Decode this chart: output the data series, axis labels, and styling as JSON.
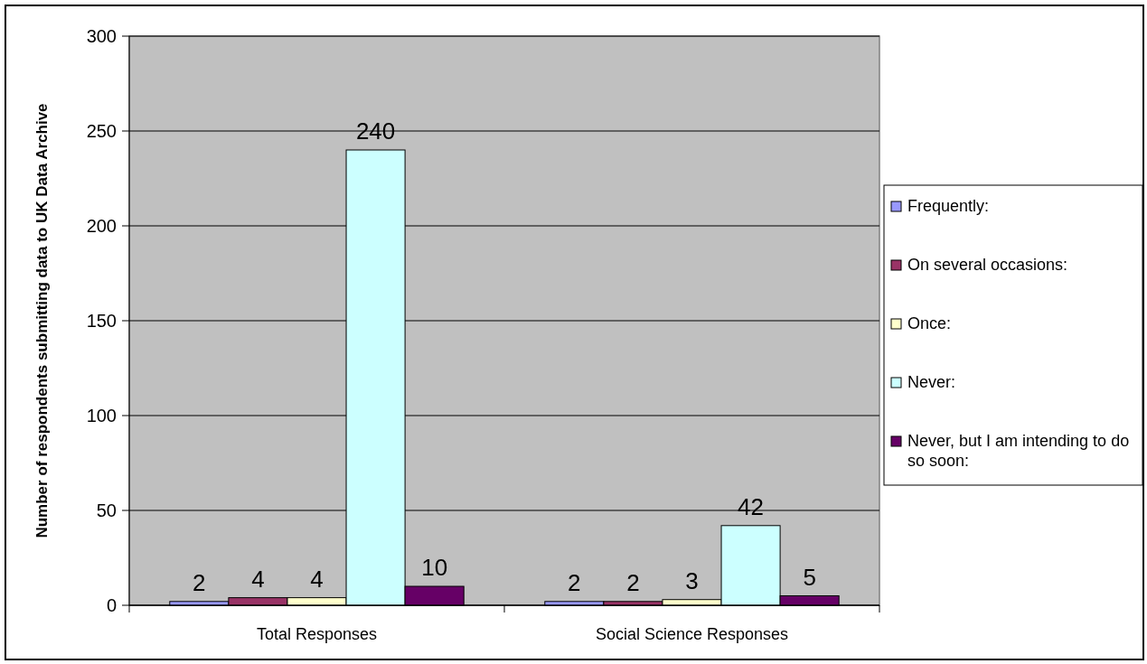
{
  "chart_data": {
    "type": "bar",
    "ylabel": "Number of respondents submitting data to UK Data Archive",
    "categories": [
      "Total Responses",
      "Social Science Responses"
    ],
    "series": [
      {
        "name": "Frequently:",
        "color": "#9999ff",
        "values": [
          2,
          2
        ]
      },
      {
        "name": "On several occasions:",
        "color": "#993366",
        "values": [
          4,
          2
        ]
      },
      {
        "name": "Once:",
        "color": "#ffffcc",
        "values": [
          4,
          3
        ]
      },
      {
        "name": "Never:",
        "color": "#ccffff",
        "values": [
          240,
          42
        ]
      },
      {
        "name": "Never, but I am intending to do so soon:",
        "color": "#660066",
        "values": [
          10,
          5
        ]
      }
    ],
    "ylim": [
      0,
      300
    ],
    "yticks": [
      0,
      50,
      100,
      150,
      200,
      250,
      300
    ],
    "grid": "y",
    "legend": "right",
    "data_labels": true
  }
}
